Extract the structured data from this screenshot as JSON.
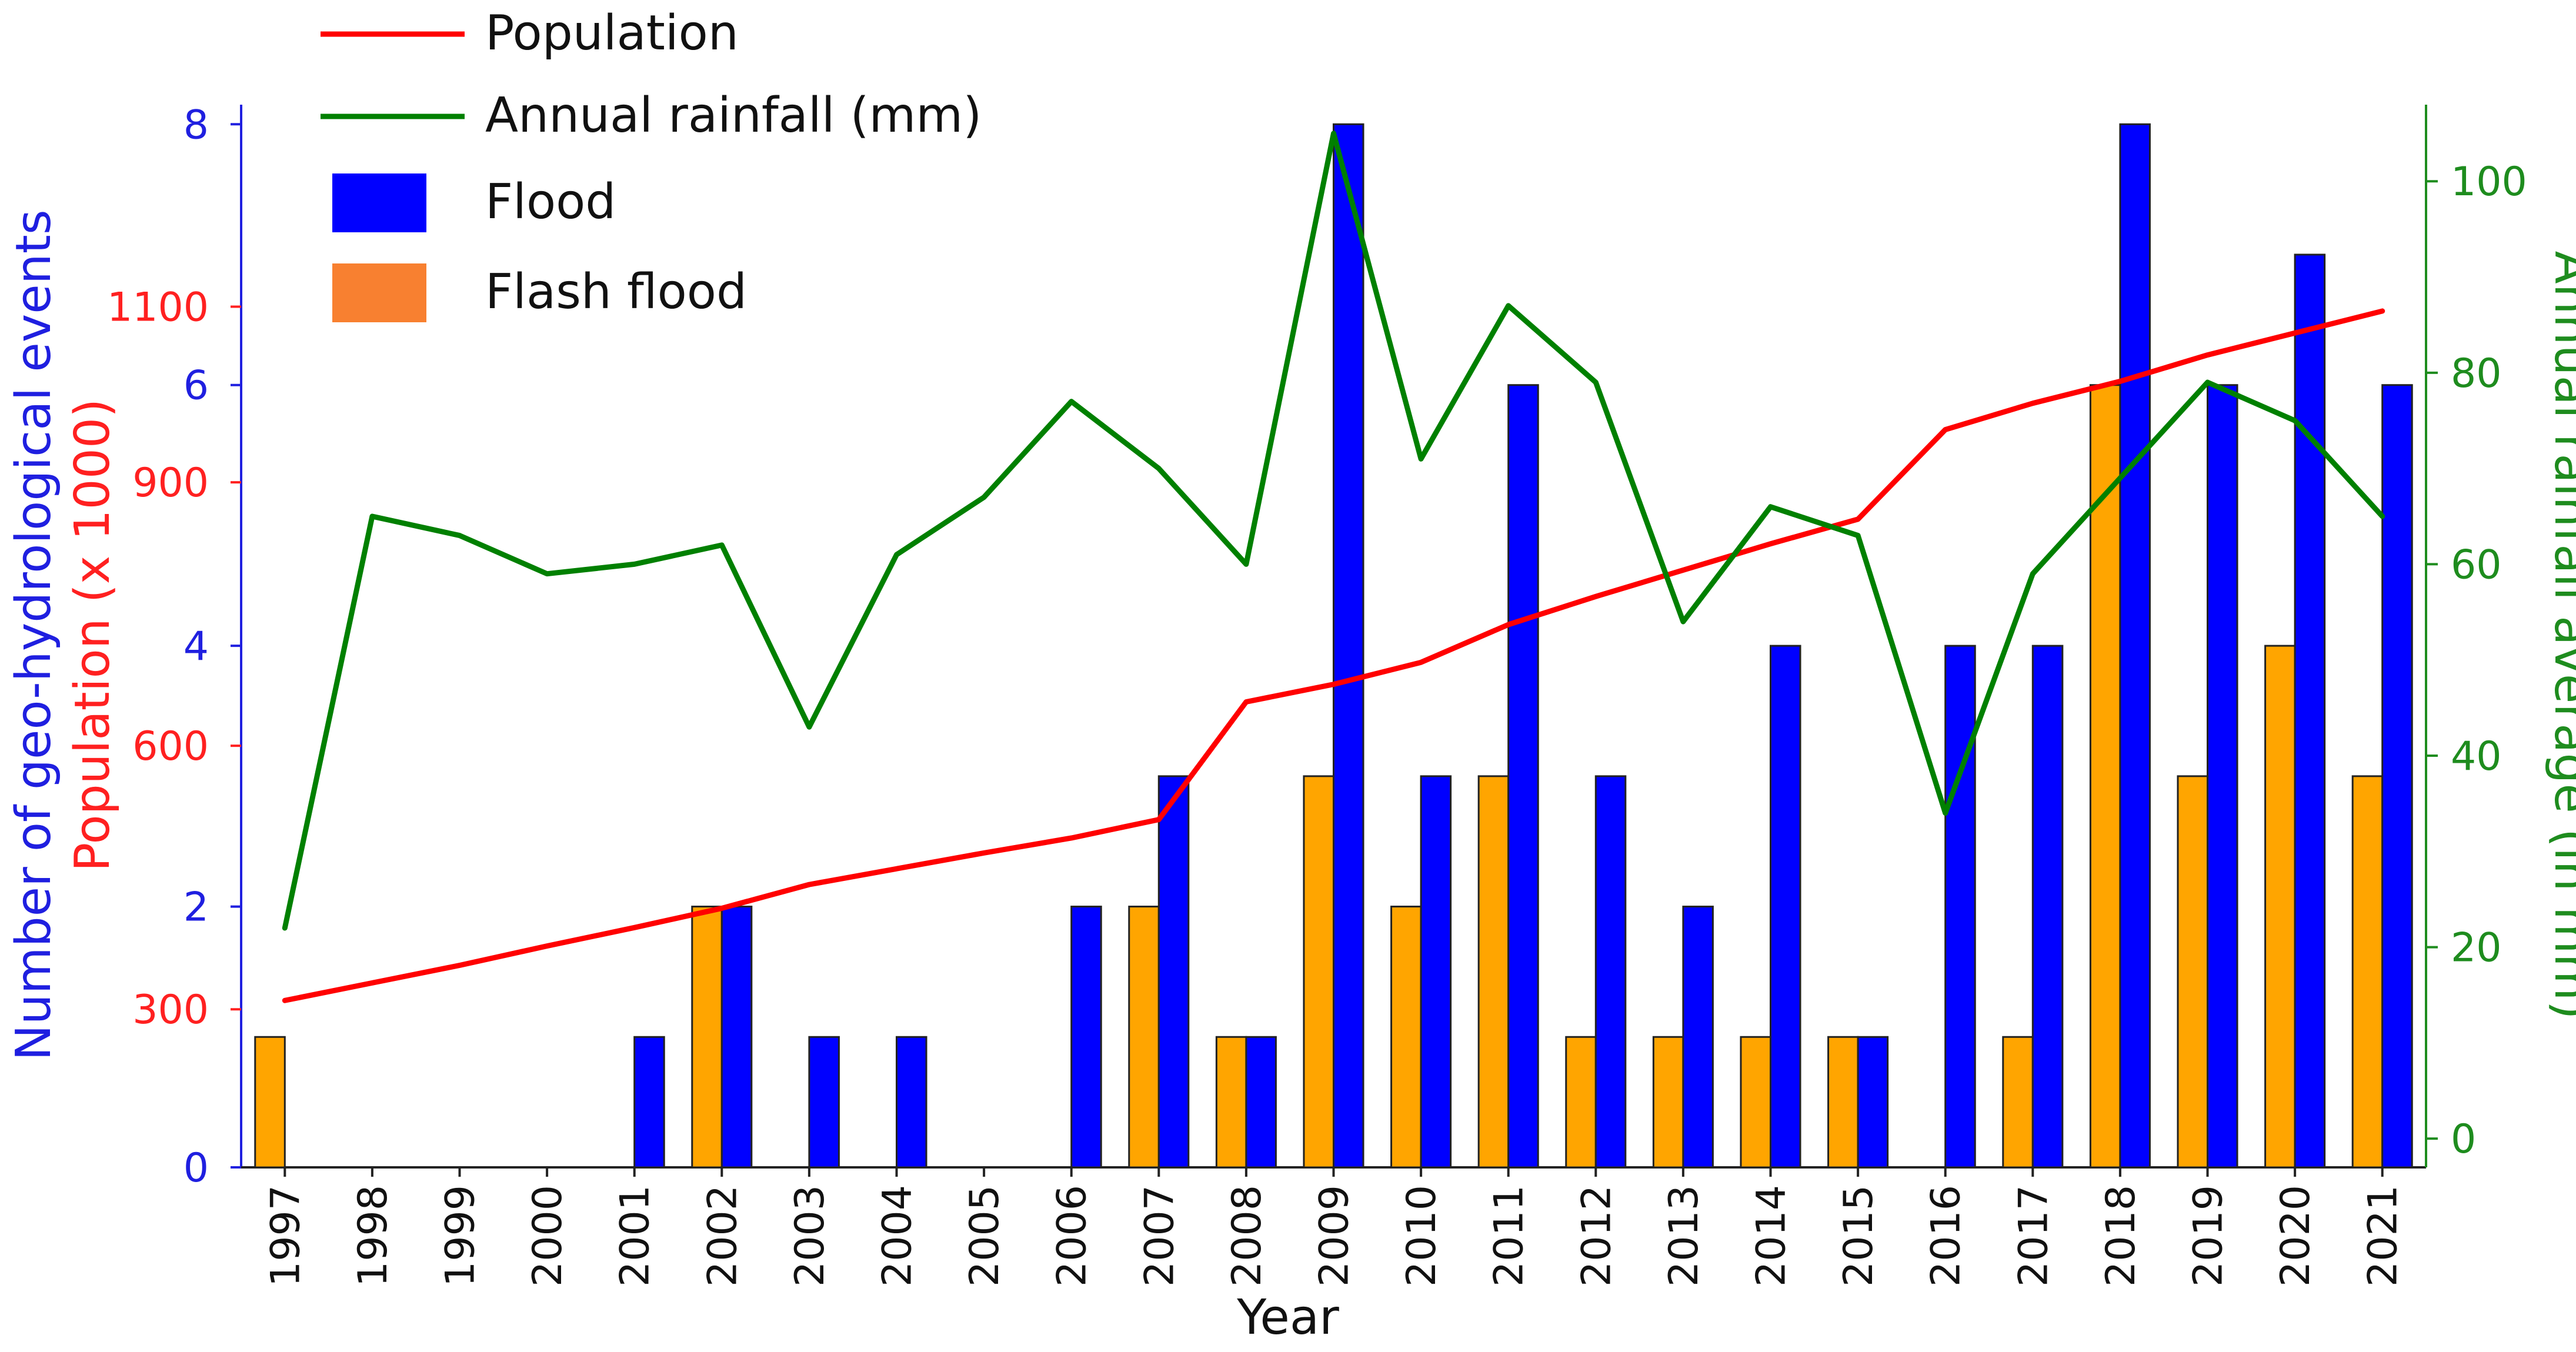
{
  "chart_data": {
    "type": "bar",
    "title": "",
    "xlabel": "Year",
    "y1label": "Number of geo-hydrological events",
    "y2label": "Population (x 1000)",
    "y3label": "Annual rainfall average (in mm)",
    "categories": [
      "1997",
      "1998",
      "1999",
      "2000",
      "2001",
      "2002",
      "2003",
      "2004",
      "2005",
      "2006",
      "2007",
      "2008",
      "2009",
      "2010",
      "2011",
      "2012",
      "2013",
      "2014",
      "2015",
      "2016",
      "2017",
      "2018",
      "2019",
      "2020",
      "2021"
    ],
    "events_ylim": [
      0,
      8.15
    ],
    "events_ticks": [
      "0",
      "2",
      "4",
      "6",
      "8"
    ],
    "population_ylim": [
      120,
      1330
    ],
    "population_ticks": [
      "300",
      "600",
      "900",
      "1100"
    ],
    "rainfall_ylim": [
      -3,
      108
    ],
    "rainfall_ticks": [
      "0",
      "20",
      "40",
      "60",
      "80",
      "100"
    ],
    "series": [
      {
        "name": "Flash flood",
        "kind": "bar",
        "axis": "events",
        "color": "#FFA500",
        "values": [
          1,
          0,
          0,
          0,
          0,
          2,
          0,
          0,
          0,
          0,
          2,
          1,
          3,
          2,
          3,
          1,
          1,
          1,
          1,
          0,
          1,
          6,
          3,
          4,
          3
        ]
      },
      {
        "name": "Flood",
        "kind": "bar",
        "axis": "events",
        "color": "#0000FF",
        "values": [
          0,
          0,
          0,
          0,
          1,
          2,
          1,
          1,
          0,
          2,
          3,
          1,
          8,
          3,
          6,
          3,
          2,
          4,
          1,
          4,
          4,
          8,
          6,
          7,
          6
        ]
      },
      {
        "name": "Population",
        "kind": "line",
        "axis": "population",
        "color": "#FF0000",
        "values": [
          310,
          330,
          350,
          372,
          393,
          415,
          442,
          460,
          478,
          495,
          516,
          650,
          670,
          695,
          738,
          770,
          800,
          830,
          858,
          960,
          990,
          1015,
          1045,
          1070,
          1095
        ]
      },
      {
        "name": "Annual rainfall (mm)",
        "kind": "line",
        "axis": "rainfall",
        "color": "#008000",
        "values": [
          22,
          65,
          63,
          59,
          60,
          62,
          43,
          61,
          67,
          77,
          70,
          60,
          105,
          71,
          87,
          79,
          54,
          66,
          63,
          34,
          59,
          69,
          79,
          75,
          65
        ]
      }
    ],
    "legend": {
      "placement": "top-left",
      "items": [
        {
          "label": "Population",
          "swatch": "line",
          "color": "#FF0000"
        },
        {
          "label": "Annual rainfall (mm)",
          "swatch": "line",
          "color": "#008000"
        },
        {
          "label": "Flood",
          "swatch": "box",
          "color": "#0000FF"
        },
        {
          "label": "Flash flood",
          "swatch": "box",
          "color": "#F88030"
        }
      ]
    }
  }
}
